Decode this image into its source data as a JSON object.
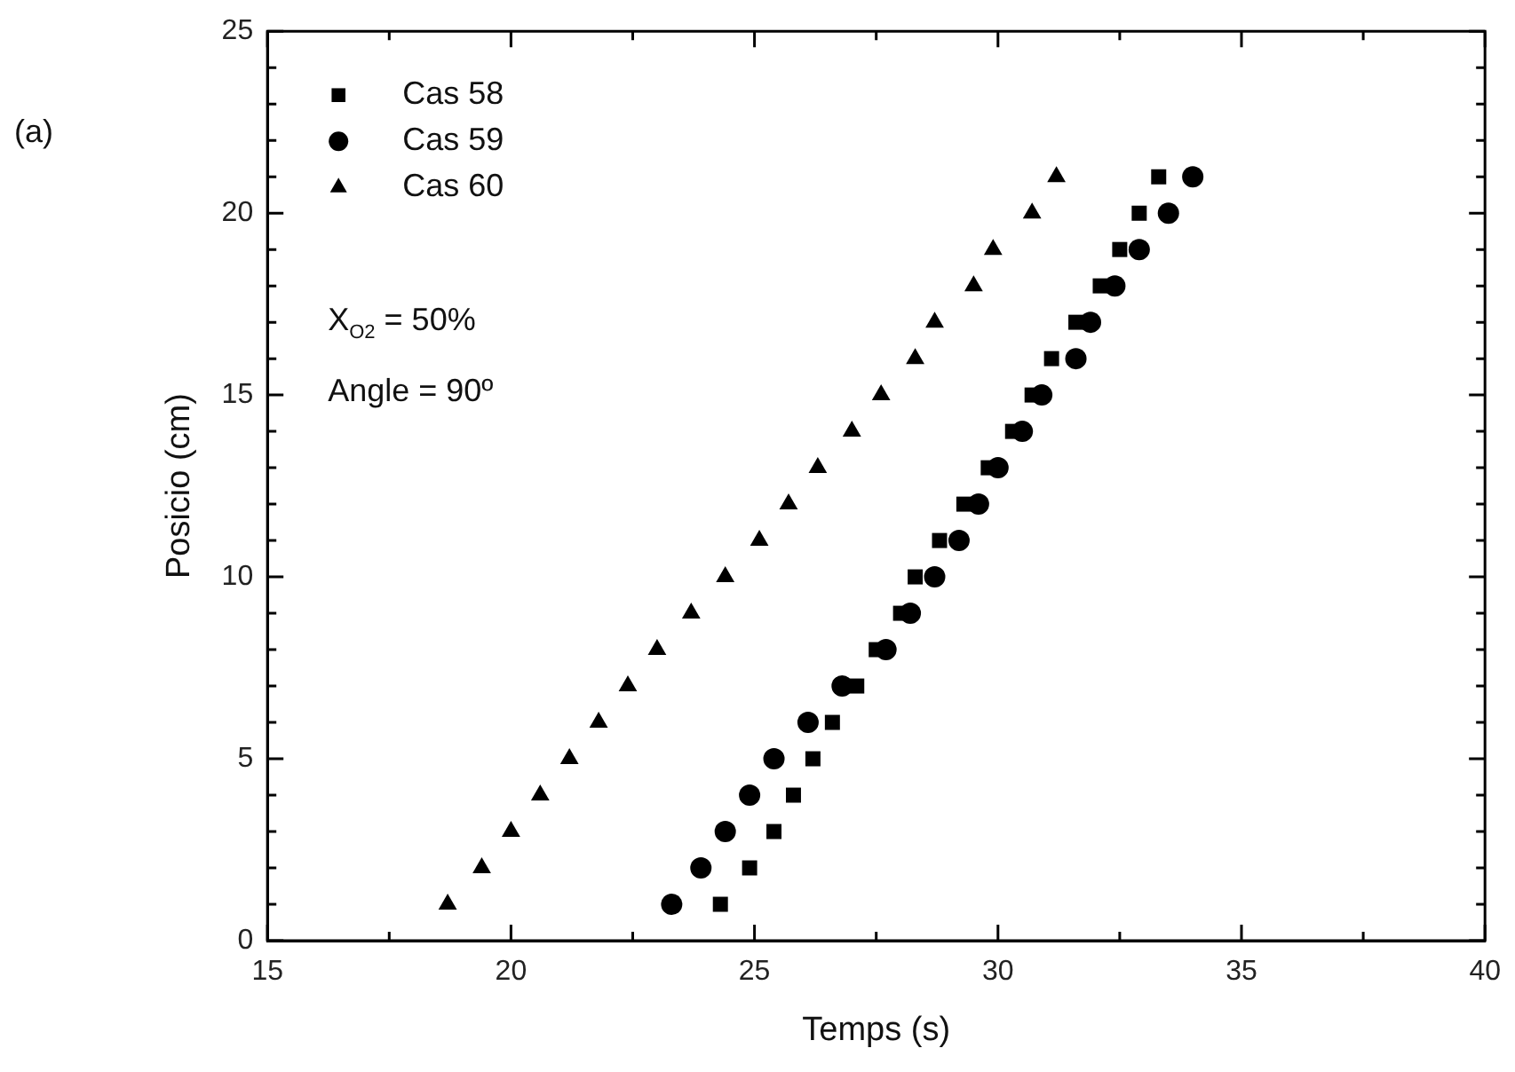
{
  "chart_data": {
    "type": "scatter",
    "xlabel": "Temps (s)",
    "ylabel": "Posicio (cm)",
    "xlim": [
      15,
      40
    ],
    "ylim": [
      0,
      25
    ],
    "xticks": [
      15,
      {
        "value": 17.5,
        "label": null
      },
      20,
      {
        "value": 22.5,
        "label": null
      },
      25,
      {
        "value": 27.5,
        "label": null
      },
      30,
      {
        "value": 32.5,
        "label": null
      },
      35,
      {
        "value": 37.5,
        "label": null
      },
      40
    ],
    "yticks": [
      0,
      {
        "value": 1,
        "label": null
      },
      {
        "value": 2,
        "label": null
      },
      {
        "value": 3,
        "label": null
      },
      {
        "value": 4,
        "label": null
      },
      5,
      {
        "value": 6,
        "label": null
      },
      {
        "value": 7,
        "label": null
      },
      {
        "value": 8,
        "label": null
      },
      {
        "value": 9,
        "label": null
      },
      10,
      {
        "value": 11,
        "label": null
      },
      {
        "value": 12,
        "label": null
      },
      {
        "value": 13,
        "label": null
      },
      {
        "value": 14,
        "label": null
      },
      15,
      {
        "value": 16,
        "label": null
      },
      {
        "value": 17,
        "label": null
      },
      {
        "value": 18,
        "label": null
      },
      {
        "value": 19,
        "label": null
      },
      20,
      {
        "value": 21,
        "label": null
      },
      {
        "value": 22,
        "label": null
      },
      {
        "value": 23,
        "label": null
      },
      {
        "value": 24,
        "label": null
      },
      25
    ],
    "legend": "top left",
    "grid": false,
    "series": [
      {
        "name": "Cas 58",
        "color": "#000000",
        "marker": "square",
        "x": [
          24.3,
          24.9,
          25.4,
          25.8,
          26.2,
          26.6,
          27.1,
          27.5,
          28.0,
          28.3,
          28.8,
          29.3,
          29.8,
          30.3,
          30.7,
          31.1,
          31.6,
          32.1,
          32.5,
          32.9,
          33.3
        ],
        "values": [
          1,
          2,
          3,
          4,
          5,
          6,
          7,
          8,
          9,
          10,
          11,
          12,
          13,
          14,
          15,
          16,
          17,
          18,
          19,
          20,
          21
        ]
      },
      {
        "name": "Cas 59",
        "color": "#000000",
        "marker": "circle",
        "x": [
          23.3,
          23.9,
          24.4,
          24.9,
          25.4,
          26.1,
          26.8,
          27.7,
          28.2,
          28.7,
          29.2,
          29.6,
          30.0,
          30.5,
          30.9,
          31.6,
          31.9,
          32.4,
          32.9,
          33.5,
          34.0
        ],
        "values": [
          1,
          2,
          3,
          4,
          5,
          6,
          7,
          8,
          9,
          10,
          11,
          12,
          13,
          14,
          15,
          16,
          17,
          18,
          19,
          20,
          21
        ]
      },
      {
        "name": "Cas 60",
        "color": "#000000",
        "marker": "triangle",
        "x": [
          18.7,
          19.4,
          20.0,
          20.6,
          21.2,
          21.8,
          22.4,
          23.0,
          23.7,
          24.4,
          25.1,
          25.7,
          26.3,
          27.0,
          27.6,
          28.3,
          28.7,
          29.5,
          29.9,
          30.7,
          31.2
        ],
        "values": [
          1,
          2,
          3,
          4,
          5,
          6,
          7,
          8,
          9,
          10,
          11,
          12,
          13,
          14,
          15,
          16,
          17,
          18,
          19,
          20,
          21
        ]
      }
    ],
    "annotations": [
      "(a)",
      "X$_{O2}$ = 50%",
      "Angle = 90º"
    ]
  }
}
